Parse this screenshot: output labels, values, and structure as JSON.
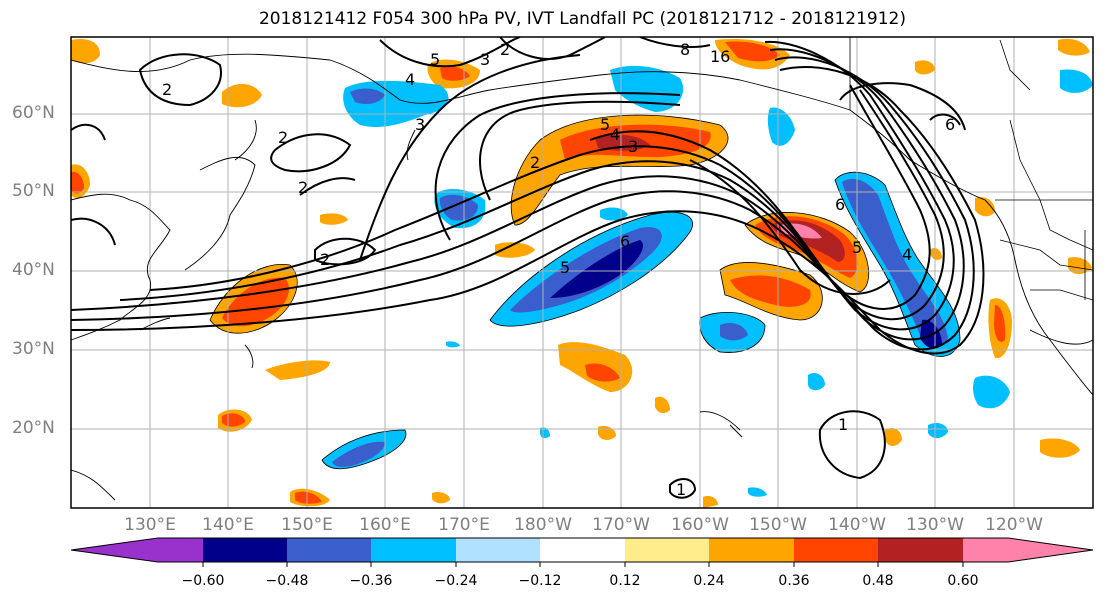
{
  "title": "2018121412 F054 300 hPa PV, IVT Landfall PC (2018121712 - 2018121912)",
  "lat_labels": [
    "60°N",
    "50°N",
    "40°N",
    "30°N",
    "20°N"
  ],
  "lon_labels": [
    "130°E",
    "140°E",
    "150°E",
    "160°E",
    "170°E",
    "180°W",
    "170°W",
    "160°W",
    "150°W",
    "140°W",
    "130°W",
    "120°W"
  ],
  "colorbar": {
    "colors": [
      "#9932cc",
      "#00008b",
      "#3a5fcd",
      "#00bfff",
      "#b0e2ff",
      "#ffffff",
      "#ffec8b",
      "#ffa500",
      "#ff4500",
      "#b22222",
      "#ff82ab"
    ],
    "tick_labels": [
      "−0.60",
      "−0.48",
      "−0.36",
      "−0.24",
      "−0.12",
      "0.12",
      "0.24",
      "0.36",
      "0.48",
      "0.60"
    ]
  },
  "contour_labels": [
    "2",
    "2",
    "2",
    "2",
    "2",
    "3",
    "5",
    "4",
    "3",
    "5",
    "4",
    "3",
    "2",
    "6",
    "5",
    "8",
    "16",
    "6",
    "5",
    "4",
    "6",
    "1",
    "1"
  ]
}
